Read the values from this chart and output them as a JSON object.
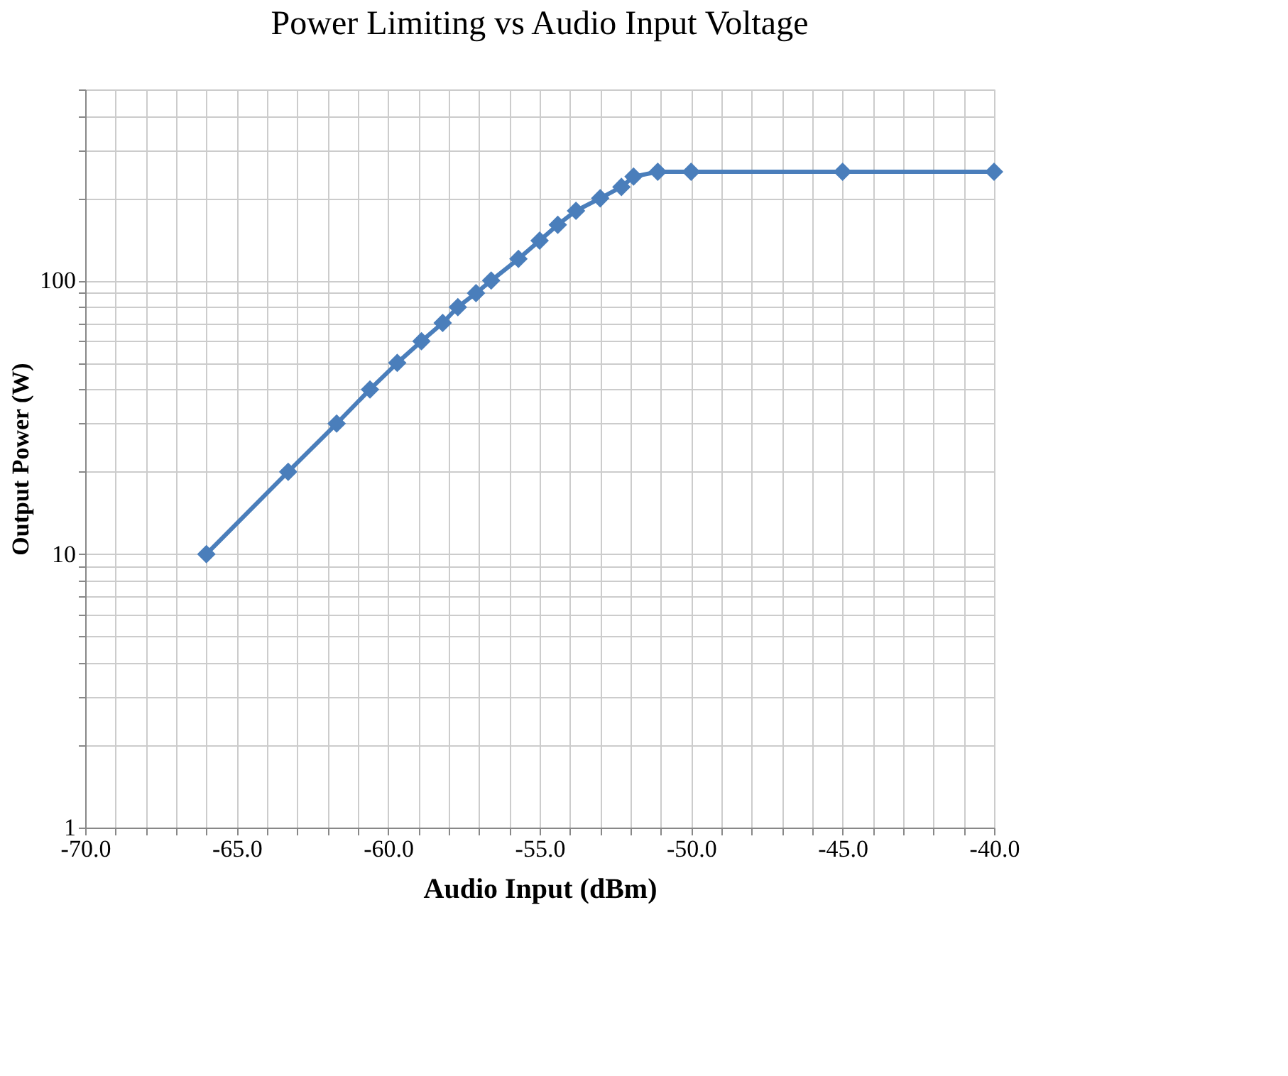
{
  "chart_data": {
    "type": "line",
    "title": "Power Limiting vs Audio Input Voltage",
    "xlabel": "Audio Input (dBm)",
    "ylabel": "Output Power (W)",
    "x": [
      -66,
      -63.3,
      -61.7,
      -60.6,
      -59.7,
      -58.9,
      -58.2,
      -57.7,
      -57.1,
      -56.6,
      -55.7,
      -55,
      -54.4,
      -53.8,
      -53,
      -52.3,
      -51.9,
      -51.1,
      -50,
      -45,
      -40
    ],
    "series": [
      {
        "color": "#4a7ebb",
        "values": [
          10,
          20,
          30,
          40,
          50,
          60,
          70,
          80,
          90,
          100,
          120,
          140,
          160,
          180,
          200,
          220,
          240,
          250,
          250,
          250,
          250
        ]
      }
    ],
    "xlim": [
      -70,
      -40
    ],
    "ylim": [
      1,
      500
    ],
    "log": "y",
    "xticks": [
      {
        "value": -70,
        "label": "-70.0"
      },
      {
        "value": -69,
        "label": null
      },
      {
        "value": -68,
        "label": null
      },
      {
        "value": -67,
        "label": null
      },
      {
        "value": -66,
        "label": null
      },
      {
        "value": -65,
        "label": "-65.0"
      },
      {
        "value": -64,
        "label": null
      },
      {
        "value": -63,
        "label": null
      },
      {
        "value": -62,
        "label": null
      },
      {
        "value": -61,
        "label": null
      },
      {
        "value": -60,
        "label": "-60.0"
      },
      {
        "value": -59,
        "label": null
      },
      {
        "value": -58,
        "label": null
      },
      {
        "value": -57,
        "label": null
      },
      {
        "value": -56,
        "label": null
      },
      {
        "value": -55,
        "label": "-55.0"
      },
      {
        "value": -54,
        "label": null
      },
      {
        "value": -53,
        "label": null
      },
      {
        "value": -52,
        "label": null
      },
      {
        "value": -51,
        "label": null
      },
      {
        "value": -50,
        "label": "-50.0"
      },
      {
        "value": -49,
        "label": null
      },
      {
        "value": -48,
        "label": null
      },
      {
        "value": -47,
        "label": null
      },
      {
        "value": -46,
        "label": null
      },
      {
        "value": -45,
        "label": "-45.0"
      },
      {
        "value": -44,
        "label": null
      },
      {
        "value": -43,
        "label": null
      },
      {
        "value": -42,
        "label": null
      },
      {
        "value": -41,
        "label": null
      },
      {
        "value": -40,
        "label": "-40.0"
      }
    ],
    "yticks": [
      1,
      {
        "value": 2,
        "label": null
      },
      {
        "value": 3,
        "label": null
      },
      {
        "value": 4,
        "label": null
      },
      {
        "value": 5,
        "label": null
      },
      {
        "value": 6,
        "label": null
      },
      {
        "value": 7,
        "label": null
      },
      {
        "value": 8,
        "label": null
      },
      {
        "value": 9,
        "label": null
      },
      10,
      {
        "value": 20,
        "label": null
      },
      {
        "value": 30,
        "label": null
      },
      {
        "value": 40,
        "label": null
      },
      {
        "value": 50,
        "label": null
      },
      {
        "value": 60,
        "label": null
      },
      {
        "value": 70,
        "label": null
      },
      {
        "value": 80,
        "label": null
      },
      {
        "value": 90,
        "label": null
      },
      100,
      {
        "value": 200,
        "label": null
      },
      {
        "value": 300,
        "label": null
      },
      {
        "value": 400,
        "label": null
      },
      {
        "value": 500,
        "label": null
      }
    ],
    "grid": true,
    "marker": "diamond",
    "line_style": "solid"
  }
}
